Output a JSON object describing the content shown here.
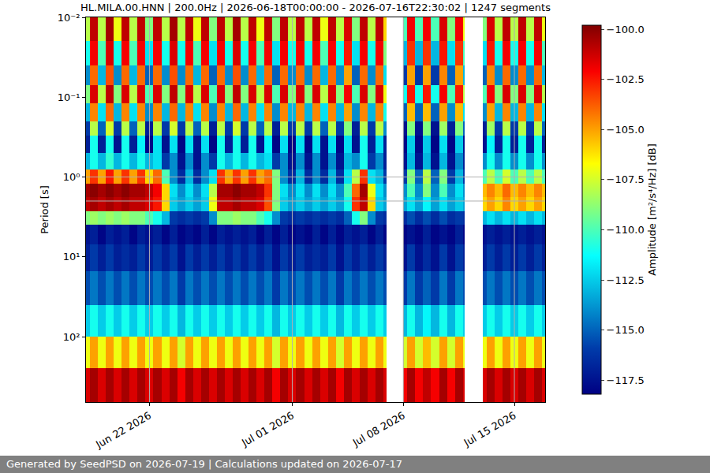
{
  "chart_data": {
    "type": "heatmap",
    "title": "HL.MILA.00.HNN | 200.0Hz | 2026-06-18T00:00:00 - 2026-07-16T22:30:02 | 1247 segments",
    "ylabel": "Period [s]",
    "colorbar_label": "Amplitude [m²/s⁴/Hz] [dB]",
    "footer": "Generated by SeedPSD on 2026-07-19 | Calculations updated on 2026-07-17",
    "color": "Jet",
    "log": "y",
    "grid": true,
    "xlim": [
      "2026-06-18T00:00:00",
      "2026-07-16T22:30:02"
    ],
    "xticks": [
      {
        "value": "2026-06-22",
        "label": "Jun 22 2026"
      },
      {
        "value": "2026-07-01",
        "label": "Jul 01 2026"
      },
      {
        "value": "2026-07-08",
        "label": "Jul 08 2026"
      },
      {
        "value": "2026-07-15",
        "label": "Jul 15 2026"
      }
    ],
    "ylim": [
      660,
      0.01
    ],
    "yticks": [
      {
        "value": 0.01,
        "label": "10⁻²"
      },
      {
        "value": 0.1,
        "label": "10⁻¹"
      },
      {
        "value": 1,
        "label": "10⁰"
      },
      {
        "value": 10,
        "label": "10¹"
      },
      {
        "value": 100,
        "label": "10²"
      }
    ],
    "zlim": [
      -118.2,
      -99.8
    ],
    "zticks": [
      {
        "value": -100,
        "label": "−100.0"
      },
      {
        "value": -102.5,
        "label": "−102.5"
      },
      {
        "value": -105,
        "label": "−105.0"
      },
      {
        "value": -107.5,
        "label": "−107.5"
      },
      {
        "value": -110,
        "label": "−110.0"
      },
      {
        "value": -112.5,
        "label": "−112.5"
      },
      {
        "value": -115,
        "label": "−115.0"
      },
      {
        "value": -117.5,
        "label": "−117.5"
      }
    ],
    "x": [
      "2026-06-18T00:00",
      "2026-06-18T06:00",
      "2026-06-18T18:00",
      "2026-06-19T06:00",
      "2026-06-19T18:00",
      "2026-06-20T06:00",
      "2026-06-20T18:00",
      "2026-06-21T06:00",
      "2026-06-21T18:00",
      "2026-06-22T06:00",
      "2026-06-22T18:00",
      "2026-06-23T06:00",
      "2026-06-23T18:00",
      "2026-06-24T06:00",
      "2026-06-24T18:00",
      "2026-06-25T06:00",
      "2026-06-25T18:00",
      "2026-06-26T06:00",
      "2026-06-26T18:00",
      "2026-06-27T06:00",
      "2026-06-27T18:00",
      "2026-06-28T06:00",
      "2026-06-28T18:00",
      "2026-06-29T06:00",
      "2026-06-29T18:00",
      "2026-06-30T06:00",
      "2026-06-30T18:00",
      "2026-07-01T06:00",
      "2026-07-01T18:00",
      "2026-07-02T06:00",
      "2026-07-02T18:00",
      "2026-07-03T06:00",
      "2026-07-03T18:00",
      "2026-07-04T06:00",
      "2026-07-04T18:00",
      "2026-07-05T06:00",
      "2026-07-05T18:00",
      "2026-07-06T06:00",
      "2026-07-06T18:00",
      "2026-07-06T22:20",
      "2026-07-08T00:00",
      "2026-07-08T06:00",
      "2026-07-08T18:00",
      "2026-07-09T06:00",
      "2026-07-09T18:00",
      "2026-07-10T06:00",
      "2026-07-10T18:00",
      "2026-07-11T06:00",
      "2026-07-11T18:00",
      "2026-07-11T21:00",
      "2026-07-13T00:00",
      "2026-07-13T06:00",
      "2026-07-13T18:00",
      "2026-07-14T06:00",
      "2026-07-14T18:00",
      "2026-07-15T06:00",
      "2026-07-15T18:00",
      "2026-07-16T06:00",
      "2026-07-16T18:00",
      "2026-07-16T22:30:02"
    ],
    "y": [
      0.01,
      0.02,
      0.04,
      0.07,
      0.12,
      0.2,
      0.3,
      0.5,
      0.8,
      1.2,
      1.8,
      2.7,
      4,
      7,
      15,
      40,
      100,
      250,
      660
    ],
    "z": [
      [
        -108,
        -101,
        -108,
        -100.5,
        -107,
        -101,
        -108,
        -101,
        -109,
        -101,
        -108,
        -100.5,
        -108,
        -101,
        -107,
        -101,
        -109,
        -101,
        -108,
        -100.5,
        -108,
        -101,
        -107,
        -101,
        -109,
        -101,
        -108,
        -101,
        -108,
        -101,
        -107,
        -101,
        -108,
        -101.5,
        -109,
        -101,
        -108,
        -101,
        -106,
        null,
        -110,
        -102,
        -110,
        -102,
        -110,
        -101.5,
        -109,
        -102,
        -107,
        null,
        -109,
        -101.5,
        -108,
        -101,
        -108,
        -101,
        -108,
        -101,
        -107
      ],
      [
        -111,
        -102,
        -110,
        -101.5,
        -111,
        -102,
        -110,
        -102,
        -112,
        -102,
        -111,
        -101.5,
        -111,
        -102,
        -110,
        -102,
        -112,
        -102,
        -111,
        -101.5,
        -111,
        -102,
        -110,
        -102,
        -112,
        -102,
        -111,
        -102,
        -111,
        -102,
        -110,
        -102,
        -111,
        -102.5,
        -112,
        -102,
        -111,
        -102,
        -109,
        null,
        -113,
        -103,
        -113,
        -103,
        -113,
        -102.5,
        -112,
        -103,
        -110,
        null,
        -112,
        -102.5,
        -111,
        -102,
        -111,
        -102,
        -111,
        -102,
        -110
      ],
      [
        -114,
        -104,
        -113,
        -103.5,
        -114,
        -104,
        -113,
        -104,
        -115,
        -104,
        -114,
        -103.5,
        -114,
        -104,
        -113,
        -104,
        -115,
        -104,
        -114,
        -103.5,
        -114,
        -104,
        -113,
        -104,
        -115,
        -104,
        -114,
        -104,
        -114,
        -104,
        -113,
        -104,
        -114,
        -105,
        -115,
        -104,
        -114,
        -104,
        -112,
        null,
        -116,
        -105,
        -116,
        -105,
        -116,
        -104.5,
        -115,
        -105,
        -113,
        null,
        -115,
        -104.5,
        -114,
        -104,
        -114,
        -104,
        -114,
        -104,
        -113
      ],
      [
        -109,
        -101.5,
        -108,
        -101,
        -109,
        -101.5,
        -108,
        -101.5,
        -110,
        -101.5,
        -109,
        -101,
        -109,
        -101.5,
        -108,
        -101.5,
        -110,
        -101.5,
        -109,
        -101,
        -109,
        -101.5,
        -108,
        -101.5,
        -110,
        -101.5,
        -109,
        -101.5,
        -109,
        -101.5,
        -108,
        -101.5,
        -109,
        -102,
        -110,
        -101.5,
        -109,
        -101.5,
        -107,
        null,
        -111,
        -102.5,
        -111,
        -102.5,
        -111,
        -102,
        -110,
        -102.5,
        -108,
        null,
        -110,
        -102,
        -109,
        -101.5,
        -109,
        -101.5,
        -109,
        -101.5,
        -108
      ],
      [
        -113,
        -104.5,
        -112,
        -104,
        -113,
        -104.5,
        -112,
        -104.5,
        -114,
        -104.5,
        -113,
        -104,
        -113,
        -104.5,
        -112,
        -104.5,
        -114,
        -104.5,
        -113,
        -104,
        -113,
        -104.5,
        -112,
        -104.5,
        -114,
        -104.5,
        -113,
        -104.5,
        -113,
        -104.5,
        -112,
        -104.5,
        -113,
        -105,
        -114,
        -104.5,
        -113,
        -104.5,
        -111,
        null,
        -115,
        -105.5,
        -115,
        -105.5,
        -115,
        -105,
        -114,
        -105.5,
        -112,
        null,
        -114,
        -105,
        -113,
        -104.5,
        -113,
        -104.5,
        -113,
        -104.5,
        -112
      ],
      [
        -116,
        -108,
        -115,
        -107.5,
        -116,
        -108,
        -115,
        -108,
        -117,
        -108,
        -116,
        -107.5,
        -116,
        -108,
        -115,
        -108,
        -117,
        -108,
        -116,
        -107.5,
        -116,
        -108,
        -115,
        -108,
        -117,
        -108,
        -116,
        -108,
        -116,
        -108,
        -115,
        -108,
        -116,
        -109,
        -117,
        -108,
        -116,
        -108,
        -114,
        null,
        -117.5,
        -109,
        -117.5,
        -109,
        -117.5,
        -108.5,
        -117,
        -109,
        -115,
        null,
        -117,
        -108.5,
        -116,
        -108,
        -116,
        -108,
        -116,
        -108,
        -115
      ],
      [
        -117,
        -111,
        -117,
        -111,
        -117.5,
        -111,
        -117,
        -111.5,
        -118,
        -112,
        -117.5,
        -112,
        -118,
        -112,
        -117.5,
        -112,
        -118,
        -111,
        -117,
        -111,
        -117,
        -111,
        -117.5,
        -111.5,
        -118,
        -112,
        -118,
        -112,
        -118,
        -112,
        -117.5,
        -112,
        -118,
        -112,
        -117.5,
        -111,
        -117,
        -112,
        -117,
        null,
        -118,
        -112.5,
        -118,
        -112.5,
        -118,
        -112,
        -118,
        -112.5,
        -117.5,
        null,
        -117.5,
        -111.5,
        -117,
        -111,
        -117,
        -111,
        -117,
        -111,
        -117
      ],
      [
        -113,
        -111,
        -113,
        -110.5,
        -113,
        -111,
        -113,
        -111,
        -113,
        -112,
        -116,
        -114,
        -117.5,
        -114,
        -117.5,
        -114,
        -116,
        -111,
        -113,
        -111,
        -113,
        -111,
        -113,
        -112,
        -116,
        -114,
        -117.5,
        -114,
        -117.5,
        -114,
        -117.5,
        -114,
        -117.5,
        -113,
        -114,
        -111,
        -116,
        -114,
        -117,
        null,
        -117.5,
        -113,
        -117.5,
        -113,
        -117.5,
        -113,
        -117.5,
        -114,
        -117,
        null,
        -114,
        -111,
        -114,
        -111,
        -114,
        -111,
        -114,
        -111,
        -114
      ],
      [
        -105,
        -103,
        -105,
        -102.5,
        -105,
        -103,
        -105,
        -103,
        -106,
        -104,
        -110,
        -114,
        -116.5,
        -113,
        -116.5,
        -114,
        -112,
        -103,
        -105,
        -103,
        -105,
        -103,
        -105,
        -104,
        -109,
        -114,
        -116.5,
        -113,
        -116.5,
        -114,
        -116.5,
        -113,
        -116.5,
        -112,
        -108,
        -103,
        -112,
        -113,
        -116,
        null,
        -116,
        -109,
        -115,
        -108,
        -115,
        -109,
        -116,
        -113,
        -116,
        null,
        -110,
        -108,
        -110,
        -107.5,
        -110,
        -108,
        -110,
        -108,
        -110
      ],
      [
        -100.5,
        -100,
        -100.5,
        -100,
        -100.5,
        -100,
        -100.5,
        -100.5,
        -101,
        -102,
        -106,
        -112,
        -114,
        -112,
        -114,
        -112,
        -108,
        -100.5,
        -100.5,
        -100,
        -100.5,
        -100.5,
        -101,
        -103,
        -109,
        -112,
        -114,
        -112,
        -114,
        -112,
        -114,
        -112,
        -114,
        -110,
        -104,
        -100.5,
        -107,
        -112,
        -114,
        null,
        -114,
        -110,
        -114,
        -109,
        -114,
        -110,
        -114,
        -112,
        -114,
        null,
        -105.5,
        -104.5,
        -105.5,
        -104,
        -105.5,
        -104.5,
        -105.5,
        -104.5,
        -105.5
      ],
      [
        -101,
        -100.5,
        -101,
        -100.5,
        -101,
        -100.5,
        -101,
        -101,
        -101.5,
        -102.5,
        -106,
        -112.5,
        -113.5,
        -112.5,
        -113.5,
        -112.5,
        -107,
        -101,
        -101,
        -100.5,
        -101,
        -101,
        -101.5,
        -103.5,
        -109,
        -112.5,
        -113.5,
        -112.5,
        -113.5,
        -112.5,
        -113.5,
        -112.5,
        -113.5,
        -111,
        -103,
        -101,
        -106,
        -112.5,
        -113.5,
        null,
        -113.5,
        -112,
        -113.5,
        -111.5,
        -113.5,
        -112,
        -113.5,
        -112.5,
        -113.5,
        null,
        -106,
        -105,
        -106,
        -104.5,
        -106,
        -105,
        -106,
        -105,
        -106
      ],
      [
        -109,
        -108.5,
        -109,
        -108.5,
        -109,
        -108.5,
        -109,
        -109,
        -110,
        -111,
        -113,
        -116,
        -116.5,
        -116,
        -116.5,
        -116,
        -114,
        -109,
        -109,
        -108.5,
        -109,
        -109,
        -110,
        -111,
        -114,
        -116,
        -116.5,
        -116,
        -116.5,
        -116,
        -116.5,
        -116,
        -116.5,
        -115,
        -111,
        -109,
        -114,
        -116,
        -116.5,
        null,
        -116.5,
        -115.5,
        -116.5,
        -115.5,
        -116.5,
        -115.5,
        -116.5,
        -116,
        -116.5,
        null,
        -113,
        -112,
        -113,
        -112,
        -113,
        -112,
        -113,
        -112,
        -113
      ],
      [
        -117.5,
        -117,
        -118,
        -117,
        -117.5,
        -117,
        -118,
        -117,
        -117.5,
        -117,
        -118,
        -117,
        -118,
        -117.5,
        -118,
        -117,
        -118,
        -117,
        -117.5,
        -117,
        -117.5,
        -117,
        -118,
        -117,
        -118,
        -117,
        -118,
        -117.5,
        -118,
        -117,
        -118,
        -117,
        -118,
        -117,
        -117.5,
        -117,
        -118,
        -117,
        -118,
        null,
        -118,
        -117.5,
        -118,
        -117,
        -118,
        -117.5,
        -118,
        -117,
        -118,
        null,
        -117.5,
        -117,
        -117.5,
        -117,
        -117.5,
        -117,
        -117.5,
        -117,
        -117.5
      ],
      [
        -117,
        -116,
        -117,
        -116,
        -117,
        -116.5,
        -117,
        -116,
        -117,
        -116,
        -117,
        -116,
        -117.5,
        -116,
        -117,
        -116,
        -117,
        -116,
        -117,
        -116,
        -117,
        -116,
        -117,
        -116,
        -117.5,
        -116,
        -117,
        -116,
        -117,
        -116.5,
        -117,
        -116,
        -117.5,
        -116,
        -117,
        -116,
        -117,
        -116,
        -117,
        null,
        -117.5,
        -116,
        -117.5,
        -116.5,
        -117.5,
        -116,
        -117.5,
        -116,
        -117,
        null,
        -117,
        -116,
        -117,
        -116,
        -117,
        -116,
        -117,
        -116,
        -117
      ],
      [
        -115.5,
        -114.5,
        -115.5,
        -114.5,
        -115.5,
        -114.5,
        -115.5,
        -114.5,
        -115.5,
        -114.5,
        -115.5,
        -114.5,
        -116,
        -114.5,
        -115.5,
        -114.5,
        -115.5,
        -114.5,
        -115.5,
        -114.5,
        -115.5,
        -114.5,
        -115.5,
        -114.5,
        -116,
        -114.5,
        -115.5,
        -114.5,
        -115.5,
        -114.5,
        -115.5,
        -114.5,
        -116,
        -114.5,
        -115.5,
        -114.5,
        -115.5,
        -114.5,
        -115.5,
        null,
        -116,
        -114.5,
        -116,
        -115,
        -116,
        -114.5,
        -116,
        -114.5,
        -115.5,
        null,
        -115.5,
        -114.5,
        -115.5,
        -114.5,
        -115.5,
        -114.5,
        -115.5,
        -114.5,
        -115.5
      ],
      [
        -112.5,
        -111,
        -112.5,
        -111,
        -112.5,
        -111,
        -112.5,
        -111,
        -112.5,
        -111,
        -112.5,
        -111,
        -113,
        -111,
        -112.5,
        -111,
        -112.5,
        -111,
        -112.5,
        -111,
        -112.5,
        -111,
        -112.5,
        -111,
        -113,
        -111,
        -112.5,
        -111,
        -112.5,
        -111,
        -112.5,
        -111,
        -113,
        -111,
        -112.5,
        -111,
        -112.5,
        -111,
        -112.5,
        null,
        -113,
        -111,
        -113,
        -111.5,
        -113,
        -111,
        -113,
        -111,
        -112.5,
        null,
        -112.5,
        -111,
        -112.5,
        -111,
        -112.5,
        -111,
        -112.5,
        -111,
        -112.5
      ],
      [
        -107,
        -105,
        -107,
        -105,
        -107,
        -105,
        -107,
        -105,
        -107,
        -105,
        -107,
        -105,
        -107.5,
        -105,
        -107,
        -105,
        -107,
        -105,
        -107,
        -105,
        -107,
        -105,
        -107,
        -105,
        -107.5,
        -105,
        -107,
        -105,
        -107,
        -105,
        -107,
        -105,
        -107.5,
        -105,
        -107,
        -105,
        -107,
        -105,
        -107,
        null,
        -107.5,
        -105,
        -107.5,
        -105.5,
        -107.5,
        -105,
        -107.5,
        -105,
        -107,
        null,
        -107,
        -105,
        -107,
        -105,
        -107,
        -105,
        -107,
        -105,
        -107
      ],
      [
        -101.5,
        -100.5,
        -101.5,
        -100.5,
        -101.5,
        -100.5,
        -101.5,
        -100.5,
        -101.5,
        -100.5,
        -101.5,
        -100.5,
        -102,
        -100.5,
        -101.5,
        -100.5,
        -101.5,
        -100.5,
        -101.5,
        -100.5,
        -101.5,
        -100.5,
        -101.5,
        -100.5,
        -102,
        -100.5,
        -101.5,
        -100.5,
        -101.5,
        -100.5,
        -101.5,
        -100.5,
        -102,
        -100.5,
        -101.5,
        -100.5,
        -101.5,
        -100.5,
        -101.5,
        null,
        -102,
        -100.5,
        -102,
        -101,
        -102,
        -100.5,
        -102,
        -100.5,
        -101.5,
        null,
        -101.5,
        -100.5,
        -101.5,
        -100.5,
        -101.5,
        -100.5,
        -101.5,
        -100.5,
        -101.5
      ]
    ]
  }
}
